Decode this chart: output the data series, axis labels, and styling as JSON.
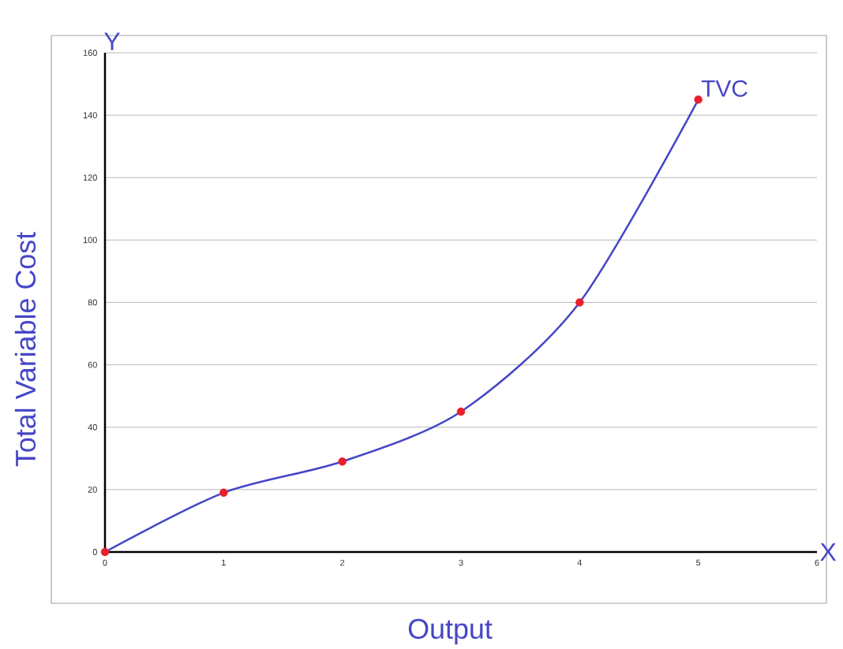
{
  "chart_data": {
    "type": "line",
    "xlabel": "Output",
    "ylabel": "Total Variable Cost",
    "x": [
      0,
      1,
      2,
      3,
      4,
      5
    ],
    "series": [
      {
        "color": "#4646c8",
        "colors": [
          "#e8202a",
          "#e8202a",
          "#e8202a",
          "#e8202a",
          "#e8202a",
          "#e8202a"
        ],
        "values": [
          0,
          19,
          29,
          45,
          80,
          145
        ]
      }
    ],
    "xlim": [
      0,
      6
    ],
    "ylim": [
      0,
      160
    ],
    "xticks": [
      0,
      1,
      2,
      3,
      4,
      5,
      6
    ],
    "yticks": [
      0,
      20,
      40,
      60,
      80,
      100,
      120,
      140,
      160
    ],
    "grid": "y",
    "marker": "circle",
    "line_style": "solid",
    "annotations": [
      "Y",
      "X",
      {
        "text": "TVC",
        "x": 5,
        "y": 145
      }
    ]
  }
}
